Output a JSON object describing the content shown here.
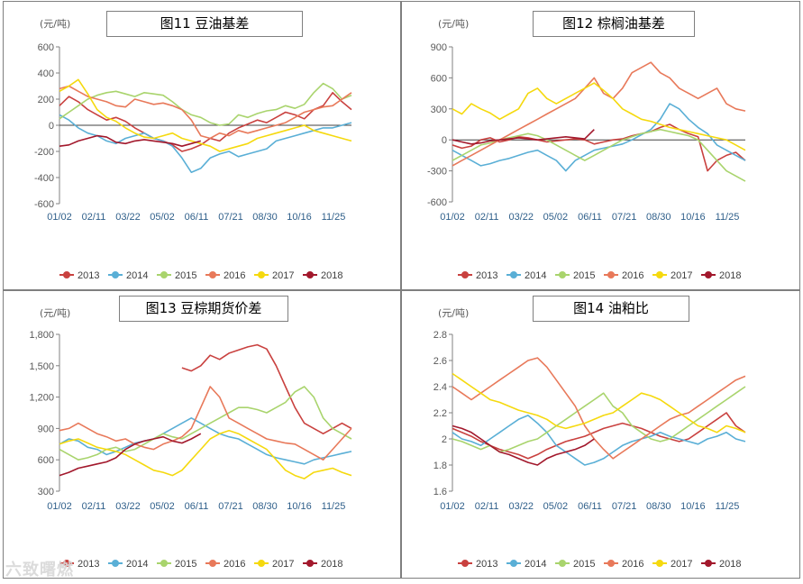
{
  "legend_years": [
    "2013",
    "2014",
    "2015",
    "2016",
    "2017",
    "2018"
  ],
  "colors": {
    "2013": "#c9413f",
    "2014": "#5aafd6",
    "2015": "#a9d46d",
    "2016": "#e8795a",
    "2017": "#f5d90e",
    "2018": "#a2182c"
  },
  "watermark": "六致曙燃",
  "chart_data": [
    {
      "type": "line",
      "title": "图11 豆油基差",
      "unit": "(元/吨)",
      "x_ticks": [
        "01/02",
        "02/11",
        "03/22",
        "05/02",
        "06/11",
        "07/21",
        "08/30",
        "10/16",
        "11/25"
      ],
      "y_ticks": [
        "600",
        "400",
        "200",
        "0",
        "-200",
        "-400",
        "-600"
      ],
      "ylim": [
        -600,
        600
      ],
      "zero_line": true,
      "series": [
        {
          "name": "2013",
          "values": [
            150,
            220,
            180,
            120,
            80,
            40,
            60,
            30,
            -20,
            -60,
            -100,
            -120,
            -150,
            -200,
            -180,
            -150,
            -100,
            -120,
            -60,
            -20,
            10,
            40,
            20,
            60,
            100,
            80,
            50,
            120,
            150,
            250,
            180,
            120
          ]
        },
        {
          "name": "2014",
          "values": [
            80,
            40,
            -20,
            -60,
            -80,
            -120,
            -140,
            -100,
            -80,
            -60,
            -100,
            -120,
            -160,
            -250,
            -360,
            -330,
            -250,
            -220,
            -200,
            -240,
            -220,
            -200,
            -180,
            -120,
            -100,
            -80,
            -60,
            -40,
            -20,
            -20,
            0,
            20
          ]
        },
        {
          "name": "2015",
          "values": [
            50,
            100,
            150,
            200,
            230,
            250,
            260,
            240,
            220,
            250,
            240,
            230,
            180,
            120,
            80,
            60,
            20,
            0,
            10,
            80,
            60,
            90,
            110,
            120,
            150,
            130,
            160,
            250,
            320,
            280,
            200,
            230
          ]
        },
        {
          "name": "2016",
          "values": [
            280,
            300,
            260,
            220,
            200,
            180,
            150,
            140,
            200,
            180,
            160,
            170,
            150,
            120,
            40,
            -80,
            -100,
            -60,
            -80,
            -40,
            -60,
            -40,
            -20,
            0,
            20,
            60,
            100,
            120,
            140,
            150,
            200,
            250
          ]
        },
        {
          "name": "2017",
          "values": [
            260,
            300,
            350,
            240,
            120,
            60,
            30,
            -20,
            -60,
            -90,
            -100,
            -80,
            -60,
            -100,
            -120,
            -140,
            -160,
            -200,
            -180,
            -160,
            -140,
            -100,
            -80,
            -60,
            -40,
            -20,
            0,
            -40,
            -60,
            -80,
            -100,
            -120
          ]
        },
        {
          "name": "2018",
          "values": [
            -160,
            -150,
            -120,
            -100,
            -80,
            -90,
            -130,
            -140,
            -120,
            -110,
            -120,
            -130,
            -140,
            -160,
            -140,
            -120
          ]
        }
      ]
    },
    {
      "type": "line",
      "title": "图12 棕榈油基差",
      "unit": "(元/吨)",
      "x_ticks": [
        "01/02",
        "02/11",
        "03/22",
        "05/02",
        "06/11",
        "07/21",
        "08/30",
        "10/16",
        "11/25"
      ],
      "y_ticks": [
        "900",
        "600",
        "300",
        "0",
        "-300",
        "-600"
      ],
      "ylim": [
        -600,
        900
      ],
      "zero_line": true,
      "series": [
        {
          "name": "2013",
          "values": [
            -50,
            -80,
            -60,
            0,
            20,
            -20,
            0,
            30,
            20,
            0,
            -20,
            -10,
            0,
            10,
            0,
            -40,
            -20,
            0,
            10,
            40,
            60,
            80,
            120,
            150,
            100,
            60,
            30,
            -300,
            -200,
            -150,
            -120,
            -200
          ]
        },
        {
          "name": "2014",
          "values": [
            -100,
            -150,
            -200,
            -250,
            -230,
            -200,
            -180,
            -150,
            -120,
            -100,
            -150,
            -200,
            -300,
            -200,
            -150,
            -100,
            -80,
            -60,
            -40,
            0,
            50,
            100,
            200,
            350,
            300,
            200,
            120,
            60,
            -50,
            -100,
            -150,
            -200
          ]
        },
        {
          "name": "2015",
          "values": [
            -200,
            -150,
            -100,
            -50,
            -30,
            0,
            20,
            40,
            60,
            40,
            0,
            -50,
            -100,
            -150,
            -200,
            -150,
            -100,
            -50,
            0,
            30,
            60,
            80,
            100,
            80,
            60,
            40,
            0,
            -100,
            -200,
            -300,
            -350,
            -400
          ]
        },
        {
          "name": "2016",
          "values": [
            -250,
            -200,
            -150,
            -100,
            -50,
            0,
            50,
            100,
            150,
            200,
            250,
            300,
            350,
            400,
            500,
            600,
            450,
            400,
            500,
            650,
            700,
            750,
            650,
            600,
            500,
            450,
            400,
            450,
            500,
            350,
            300,
            280
          ]
        },
        {
          "name": "2017",
          "values": [
            300,
            250,
            350,
            300,
            260,
            200,
            250,
            300,
            450,
            500,
            400,
            350,
            400,
            450,
            500,
            550,
            480,
            400,
            300,
            250,
            200,
            180,
            150,
            120,
            100,
            80,
            60,
            40,
            20,
            0,
            -50,
            -100
          ]
        },
        {
          "name": "2018",
          "values": [
            0,
            -20,
            -40,
            -30,
            -10,
            0,
            10,
            20,
            10,
            0,
            10,
            20,
            30,
            20,
            10,
            100
          ]
        }
      ]
    },
    {
      "type": "line",
      "title": "图13 豆棕期货价差",
      "unit": "(元/吨)",
      "x_ticks": [
        "01/02",
        "02/11",
        "03/22",
        "05/02",
        "06/11",
        "07/21",
        "08/30",
        "10/16",
        "11/25"
      ],
      "y_ticks": [
        "1,800",
        "1,500",
        "1,200",
        "900",
        "600",
        "300"
      ],
      "ylim": [
        300,
        1800
      ],
      "series": [
        {
          "name": "2013",
          "values": [
            null,
            null,
            null,
            null,
            null,
            null,
            null,
            null,
            null,
            null,
            null,
            null,
            null,
            1480,
            1450,
            1500,
            1600,
            1560,
            1620,
            1650,
            1680,
            1700,
            1660,
            1500,
            1300,
            1100,
            950,
            900,
            850,
            900,
            950,
            900
          ]
        },
        {
          "name": "2014",
          "values": [
            750,
            800,
            780,
            720,
            700,
            650,
            680,
            720,
            760,
            780,
            800,
            850,
            900,
            950,
            1000,
            950,
            900,
            850,
            820,
            800,
            750,
            700,
            650,
            620,
            600,
            580,
            560,
            600,
            620,
            640,
            660,
            680
          ]
        },
        {
          "name": "2015",
          "values": [
            700,
            650,
            600,
            620,
            650,
            700,
            720,
            680,
            700,
            750,
            800,
            850,
            820,
            800,
            850,
            900,
            950,
            1000,
            1050,
            1100,
            1100,
            1080,
            1050,
            1100,
            1150,
            1250,
            1300,
            1200,
            1000,
            900,
            850,
            800
          ]
        },
        {
          "name": "2016",
          "values": [
            880,
            900,
            950,
            900,
            850,
            820,
            780,
            800,
            750,
            720,
            700,
            750,
            780,
            820,
            900,
            1100,
            1300,
            1200,
            1000,
            950,
            900,
            850,
            800,
            780,
            760,
            750,
            700,
            650,
            600,
            700,
            800,
            900
          ]
        },
        {
          "name": "2017",
          "values": [
            750,
            780,
            800,
            760,
            720,
            700,
            680,
            650,
            600,
            550,
            500,
            480,
            450,
            500,
            600,
            700,
            800,
            850,
            880,
            850,
            800,
            750,
            700,
            600,
            500,
            450,
            420,
            480,
            500,
            520,
            480,
            450
          ]
        },
        {
          "name": "2018",
          "values": [
            450,
            480,
            520,
            540,
            560,
            580,
            620,
            700,
            750,
            780,
            800,
            820,
            780,
            760,
            800,
            850
          ]
        }
      ]
    },
    {
      "type": "line",
      "title": "图14 油粕比",
      "unit": "(元/吨)",
      "x_ticks": [
        "01/02",
        "02/11",
        "03/22",
        "05/02",
        "06/11",
        "07/21",
        "08/30",
        "10/16",
        "11/25"
      ],
      "y_ticks": [
        "2.8",
        "2.6",
        "2.4",
        "2.2",
        "2",
        "1.8",
        "1.6"
      ],
      "ylim": [
        1.6,
        2.8
      ],
      "series": [
        {
          "name": "2013",
          "values": [
            2.08,
            2.05,
            2.02,
            1.98,
            1.95,
            1.92,
            1.9,
            1.88,
            1.85,
            1.88,
            1.92,
            1.95,
            1.98,
            2.0,
            2.02,
            2.05,
            2.08,
            2.1,
            2.12,
            2.1,
            2.08,
            2.05,
            2.02,
            2.0,
            1.98,
            2.0,
            2.05,
            2.1,
            2.15,
            2.2,
            2.1,
            2.05
          ]
        },
        {
          "name": "2014",
          "values": [
            2.05,
            2.0,
            1.98,
            1.95,
            2.0,
            2.05,
            2.1,
            2.15,
            2.18,
            2.12,
            2.05,
            1.95,
            1.9,
            1.85,
            1.8,
            1.82,
            1.85,
            1.9,
            1.95,
            1.98,
            2.0,
            2.02,
            2.05,
            2.02,
            2.0,
            1.98,
            1.96,
            2.0,
            2.02,
            2.05,
            2.0,
            1.98
          ]
        },
        {
          "name": "2015",
          "values": [
            2.0,
            1.98,
            1.95,
            1.92,
            1.95,
            1.9,
            1.92,
            1.95,
            1.98,
            2.0,
            2.05,
            2.1,
            2.15,
            2.2,
            2.25,
            2.3,
            2.35,
            2.25,
            2.2,
            2.1,
            2.05,
            2.0,
            1.98,
            2.0,
            2.05,
            2.1,
            2.15,
            2.2,
            2.25,
            2.3,
            2.35,
            2.4
          ]
        },
        {
          "name": "2016",
          "values": [
            2.4,
            2.35,
            2.3,
            2.35,
            2.4,
            2.45,
            2.5,
            2.55,
            2.6,
            2.62,
            2.55,
            2.45,
            2.35,
            2.25,
            2.1,
            2.0,
            1.92,
            1.85,
            1.9,
            1.95,
            2.0,
            2.05,
            2.1,
            2.15,
            2.18,
            2.2,
            2.25,
            2.3,
            2.35,
            2.4,
            2.45,
            2.48
          ]
        },
        {
          "name": "2017",
          "values": [
            2.5,
            2.45,
            2.4,
            2.35,
            2.3,
            2.28,
            2.25,
            2.22,
            2.2,
            2.18,
            2.15,
            2.1,
            2.08,
            2.1,
            2.12,
            2.15,
            2.18,
            2.2,
            2.25,
            2.3,
            2.35,
            2.33,
            2.3,
            2.25,
            2.2,
            2.15,
            2.1,
            2.08,
            2.05,
            2.1,
            2.08,
            2.05
          ]
        },
        {
          "name": "2018",
          "values": [
            2.1,
            2.08,
            2.05,
            2.0,
            1.95,
            1.9,
            1.88,
            1.85,
            1.82,
            1.8,
            1.85,
            1.88,
            1.9,
            1.92,
            1.95,
            2.0
          ]
        }
      ]
    }
  ]
}
